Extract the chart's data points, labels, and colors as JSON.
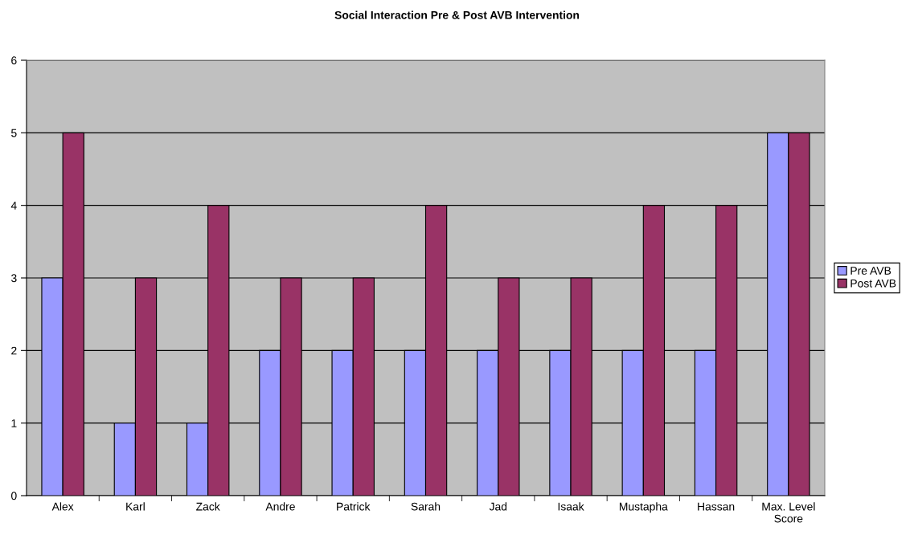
{
  "chart_data": {
    "type": "bar",
    "title": "Social Interaction Pre & Post AVB Intervention",
    "categories": [
      "Alex",
      "Karl",
      "Zack",
      "Andre",
      "Patrick",
      "Sarah",
      "Jad",
      "Isaak",
      "Mustapha",
      "Hassan",
      "Max. Level Score"
    ],
    "series": [
      {
        "name": "Pre AVB",
        "color": "#9999ff",
        "values": [
          3,
          1,
          1,
          2,
          2,
          2,
          2,
          2,
          2,
          2,
          5
        ]
      },
      {
        "name": "Post AVB",
        "color": "#993366",
        "values": [
          5,
          3,
          4,
          3,
          3,
          4,
          3,
          3,
          4,
          4,
          5
        ]
      }
    ],
    "ylim": [
      0,
      6
    ],
    "yticks": [
      0,
      1,
      2,
      3,
      4,
      5,
      6
    ],
    "grid": "y",
    "legend": "right"
  }
}
